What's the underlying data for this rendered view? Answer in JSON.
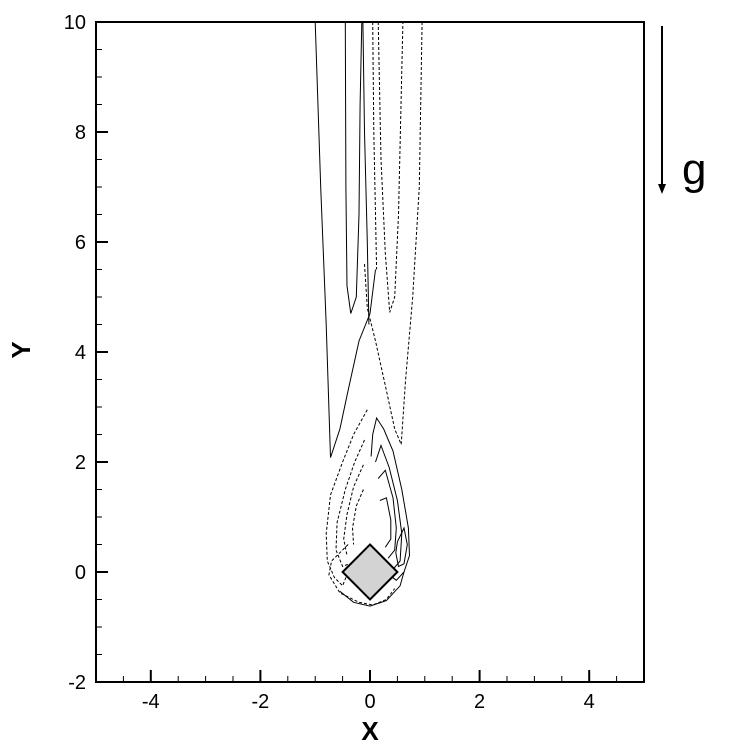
{
  "chart_data": {
    "type": "contour",
    "xlabel": "X",
    "ylabel": "Y",
    "xlim": [
      -5,
      5
    ],
    "ylim": [
      -2,
      10
    ],
    "x_ticks": [
      -4,
      -2,
      0,
      2,
      4
    ],
    "y_ticks": [
      -2,
      0,
      2,
      4,
      6,
      8,
      10
    ],
    "grid": false,
    "body": {
      "shape": "square rotated 45 degrees",
      "center": [
        0,
        0
      ],
      "half_diagonal": 0.5,
      "fill": "#d3d3d3"
    },
    "gravity": {
      "label": "g",
      "direction": "downward"
    },
    "contours": [
      {
        "sign": "positive",
        "style": "solid",
        "points": [
          [
            -1.0,
            10
          ],
          [
            -0.9,
            7
          ],
          [
            -0.8,
            4.5
          ],
          [
            -0.72,
            2.08
          ],
          [
            -0.55,
            2.6
          ],
          [
            -0.4,
            3.3
          ],
          [
            -0.2,
            4.2
          ],
          [
            0.0,
            4.7
          ],
          [
            0.1,
            5.5
          ]
        ]
      },
      {
        "sign": "positive",
        "style": "solid",
        "points": [
          [
            -0.45,
            10
          ],
          [
            -0.44,
            7
          ],
          [
            -0.42,
            5.2
          ],
          [
            -0.35,
            4.7
          ],
          [
            -0.25,
            5.0
          ],
          [
            -0.2,
            6.5
          ],
          [
            -0.18,
            8.5
          ],
          [
            -0.15,
            10
          ]
        ]
      },
      {
        "sign": "positive",
        "style": "solid",
        "points": [
          [
            -0.13,
            10
          ],
          [
            -0.1,
            8
          ],
          [
            -0.05,
            6
          ],
          [
            -0.02,
            4.5
          ]
        ]
      },
      {
        "sign": "negative",
        "style": "dashed",
        "points": [
          [
            0.05,
            10
          ],
          [
            0.07,
            8
          ],
          [
            0.1,
            6.5
          ],
          [
            0.12,
            5.5
          ]
        ]
      },
      {
        "sign": "negative",
        "style": "dashed",
        "points": [
          [
            0.15,
            10
          ],
          [
            0.2,
            7.5
          ],
          [
            0.28,
            5.8
          ],
          [
            0.36,
            4.72
          ],
          [
            0.45,
            5.0
          ],
          [
            0.52,
            6.5
          ],
          [
            0.6,
            10
          ]
        ]
      },
      {
        "sign": "negative",
        "style": "dashed",
        "points": [
          [
            0.95,
            10
          ],
          [
            0.9,
            7
          ],
          [
            0.78,
            5
          ],
          [
            0.65,
            3.5
          ],
          [
            0.57,
            2.32
          ],
          [
            0.45,
            2.6
          ],
          [
            0.3,
            3.3
          ],
          [
            0.1,
            4.2
          ],
          [
            -0.05,
            4.8
          ],
          [
            -0.1,
            5.6
          ]
        ]
      },
      {
        "sign": "negative",
        "style": "dashed",
        "points": [
          [
            -0.05,
            2.95
          ],
          [
            -0.3,
            2.5
          ],
          [
            -0.5,
            2.0
          ],
          [
            -0.72,
            1.4
          ],
          [
            -0.8,
            0.7
          ],
          [
            -0.78,
            0.2
          ],
          [
            -0.65,
            -0.1
          ],
          [
            -0.5,
            -0.25
          ],
          [
            -0.42,
            -0.05
          ]
        ]
      },
      {
        "sign": "negative",
        "style": "dashed",
        "points": [
          [
            -0.1,
            2.4
          ],
          [
            -0.28,
            2.0
          ],
          [
            -0.45,
            1.5
          ],
          [
            -0.6,
            0.9
          ],
          [
            -0.62,
            0.4
          ],
          [
            -0.5,
            0.1
          ],
          [
            -0.38,
            0.15
          ]
        ]
      },
      {
        "sign": "negative",
        "style": "dashed",
        "points": [
          [
            -0.12,
            1.95
          ],
          [
            -0.3,
            1.55
          ],
          [
            -0.42,
            1.05
          ],
          [
            -0.48,
            0.6
          ],
          [
            -0.42,
            0.3
          ]
        ]
      },
      {
        "sign": "negative",
        "style": "dashed",
        "points": [
          [
            -0.12,
            1.5
          ],
          [
            -0.25,
            1.2
          ],
          [
            -0.32,
            0.8
          ],
          [
            -0.3,
            0.5
          ]
        ]
      },
      {
        "sign": "negative",
        "style": "dashed",
        "points": [
          [
            -0.4,
            0.5
          ],
          [
            -0.7,
            0.2
          ],
          [
            -0.75,
            -0.05
          ],
          [
            -0.55,
            -0.38
          ],
          [
            -0.2,
            -0.55
          ],
          [
            0.05,
            -0.6
          ],
          [
            0.3,
            -0.5
          ],
          [
            0.45,
            -0.3
          ]
        ]
      },
      {
        "sign": "positive",
        "style": "solid",
        "points": [
          [
            0.02,
            2.1
          ],
          [
            0.05,
            2.5
          ],
          [
            0.12,
            2.8
          ],
          [
            0.25,
            2.6
          ],
          [
            0.42,
            2.2
          ],
          [
            0.58,
            1.5
          ],
          [
            0.7,
            0.8
          ],
          [
            0.72,
            0.3
          ],
          [
            0.62,
            0.0
          ],
          [
            0.48,
            -0.15
          ],
          [
            0.35,
            -0.05
          ]
        ]
      },
      {
        "sign": "positive",
        "style": "solid",
        "points": [
          [
            0.1,
            2.0
          ],
          [
            0.2,
            2.3
          ],
          [
            0.35,
            1.9
          ],
          [
            0.5,
            1.3
          ],
          [
            0.58,
            0.7
          ],
          [
            0.55,
            0.2
          ],
          [
            0.42,
            0.05
          ]
        ]
      },
      {
        "sign": "positive",
        "style": "solid",
        "points": [
          [
            0.15,
            1.7
          ],
          [
            0.28,
            1.85
          ],
          [
            0.42,
            1.35
          ],
          [
            0.48,
            0.8
          ],
          [
            0.45,
            0.4
          ],
          [
            0.33,
            0.25
          ]
        ]
      },
      {
        "sign": "positive",
        "style": "solid",
        "points": [
          [
            0.18,
            1.3
          ],
          [
            0.3,
            1.35
          ],
          [
            0.38,
            0.95
          ],
          [
            0.38,
            0.6
          ],
          [
            0.28,
            0.45
          ]
        ]
      },
      {
        "sign": "positive",
        "style": "solid",
        "points": [
          [
            0.5,
            0.55
          ],
          [
            0.62,
            0.8
          ],
          [
            0.68,
            0.5
          ],
          [
            0.62,
            0.15
          ],
          [
            0.52,
            0.1
          ],
          [
            0.47,
            0.35
          ],
          [
            0.5,
            0.55
          ]
        ]
      },
      {
        "sign": "positive",
        "style": "solid",
        "points": [
          [
            -0.55,
            -0.35
          ],
          [
            -0.3,
            -0.55
          ],
          [
            0.0,
            -0.62
          ],
          [
            0.3,
            -0.52
          ],
          [
            0.55,
            -0.25
          ],
          [
            0.62,
            0.0
          ]
        ]
      }
    ]
  }
}
